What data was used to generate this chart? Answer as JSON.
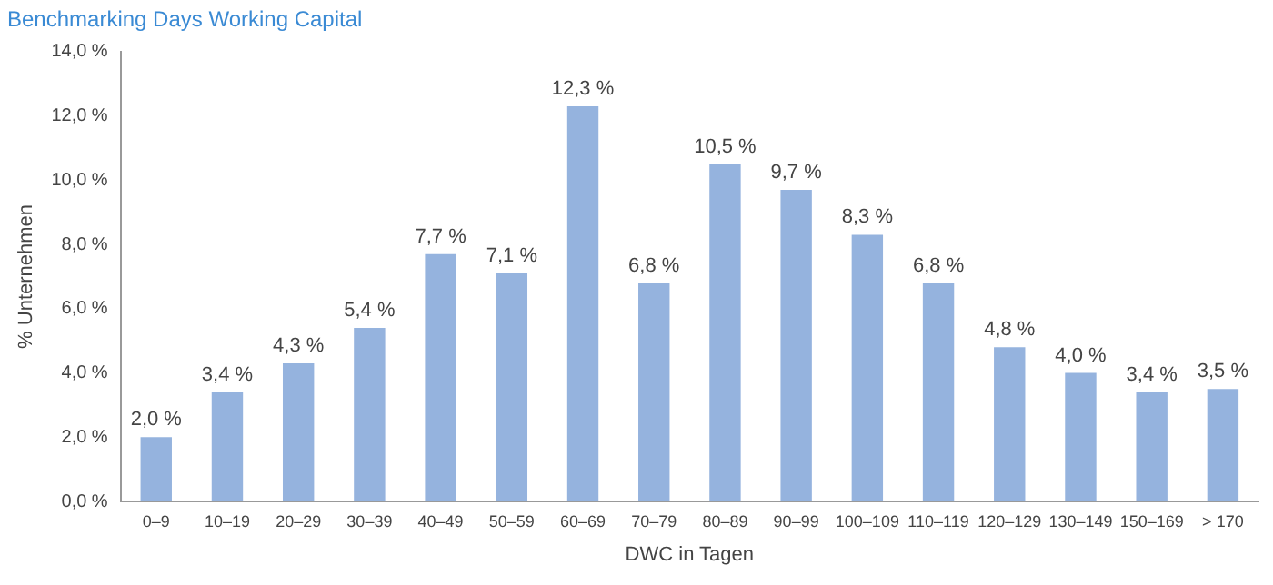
{
  "chart_data": {
    "type": "bar",
    "title": "Benchmarking Days Working Capital",
    "xlabel": "DWC in Tagen",
    "ylabel": "% Unternehmen",
    "categories": [
      "0–9",
      "10–19",
      "20–29",
      "30–39",
      "40–49",
      "50–59",
      "60–69",
      "70–79",
      "80–89",
      "90–99",
      "100–109",
      "110–119",
      "120–129",
      "130–149",
      "150–169",
      "> 170"
    ],
    "values": [
      2.0,
      3.4,
      4.3,
      5.4,
      7.7,
      7.1,
      12.3,
      6.8,
      10.5,
      9.7,
      8.3,
      6.8,
      4.8,
      4.0,
      3.4,
      3.5
    ],
    "value_labels": [
      "2,0 %",
      "3,4 %",
      "4,3 %",
      "5,4 %",
      "7,7 %",
      "7,1 %",
      "12,3 %",
      "6,8 %",
      "10,5 %",
      "9,7 %",
      "8,3 %",
      "6,8 %",
      "4,8 %",
      "4,0 %",
      "3,4 %",
      "3,5 %"
    ],
    "color": "#95b3de",
    "ylim": [
      0,
      14
    ],
    "yticks": [
      {
        "value": 0,
        "label": "0,0 %"
      },
      {
        "value": 2,
        "label": "2,0 %"
      },
      {
        "value": 4,
        "label": "4,0 %"
      },
      {
        "value": 6,
        "label": "6,0 %"
      },
      {
        "value": 8,
        "label": "8,0 %"
      },
      {
        "value": 10,
        "label": "10,0 %"
      },
      {
        "value": 12,
        "label": "12,0 %"
      },
      {
        "value": 14,
        "label": "14,0 %"
      }
    ],
    "grid": false,
    "legend": false
  }
}
